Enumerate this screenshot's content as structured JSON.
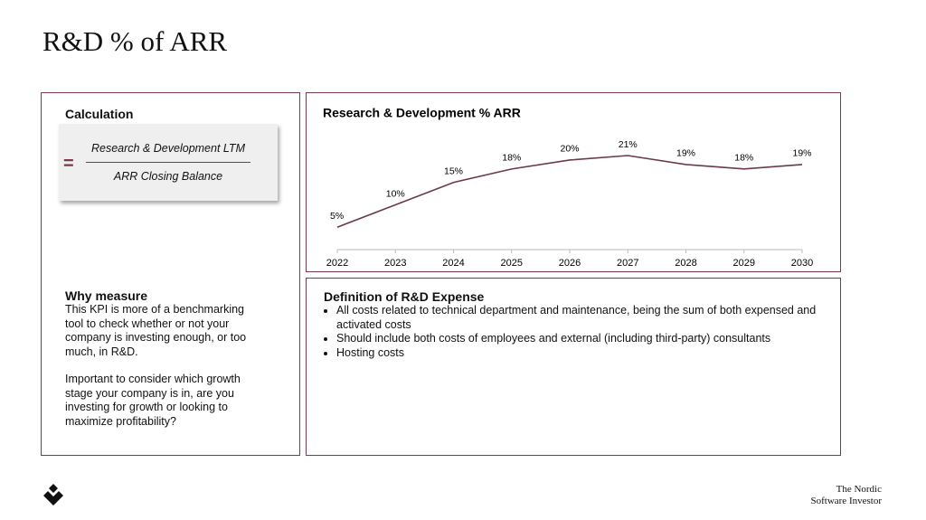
{
  "title": "R&D % of ARR",
  "calculation": {
    "heading": "Calculation",
    "numerator": "Research & Development LTM",
    "denominator": "ARR Closing Balance"
  },
  "chart_data": {
    "type": "line",
    "title": "Research & Development % ARR",
    "categories": [
      "2022",
      "2023",
      "2024",
      "2025",
      "2026",
      "2027",
      "2028",
      "2029",
      "2030"
    ],
    "values": [
      5,
      10,
      15,
      18,
      20,
      21,
      19,
      18,
      19
    ],
    "value_labels": [
      "5%",
      "10%",
      "15%",
      "18%",
      "20%",
      "21%",
      "19%",
      "18%",
      "19%"
    ],
    "color": "#6b3a47"
  },
  "why_measure": {
    "heading": "Why measure",
    "paragraphs": [
      "This KPI is more of a benchmarking tool to check whether or not your company is investing enough, or too much, in R&D.",
      "Important to consider which growth stage your company is in, are you investing for growth or looking to maximize profitability?"
    ]
  },
  "definition": {
    "heading": "Definition of R&D Expense",
    "bullets": [
      "All costs related to technical department and maintenance, being the sum of both expensed and activated costs",
      "Should include both costs of employees and external (including third-party) consultants",
      "Hosting costs"
    ]
  },
  "footer": {
    "brand_line1": "The Nordic",
    "brand_line2": "Software Investor"
  }
}
